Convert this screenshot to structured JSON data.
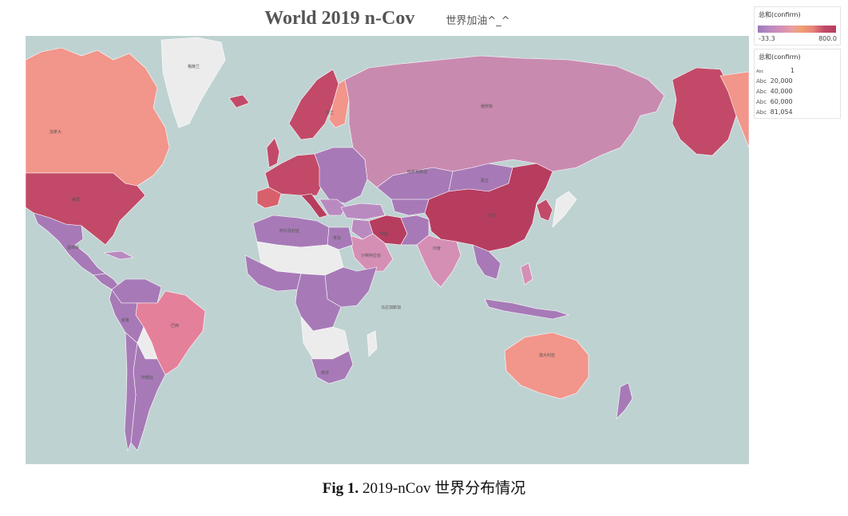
{
  "title": {
    "main": "World 2019 n-Cov",
    "sub": "世界加油^_^"
  },
  "legend_color": {
    "title": "总和(confirm)",
    "min": "-33.3",
    "max": "800.0",
    "gradient": [
      "#9b7bb8",
      "#b98ac0",
      "#d58fb5",
      "#e9a0a0",
      "#f0a070",
      "#e8857a",
      "#d8606c",
      "#c24a68",
      "#b73d5f"
    ]
  },
  "legend_size": {
    "title": "总和(confirm)",
    "items": [
      {
        "abc": "Abc",
        "value": "1"
      },
      {
        "abc": "Abc",
        "value": "20,000"
      },
      {
        "abc": "Abc",
        "value": "40,000"
      },
      {
        "abc": "Abc",
        "value": "60,000"
      },
      {
        "abc": "Abc",
        "value": "81,054"
      }
    ]
  },
  "caption": {
    "bold": "Fig 1.",
    "text": " 2019-nCov 世界分布情况"
  },
  "map": {
    "ocean_color": "#bfd2d2",
    "nodata_color": "#ececec",
    "labels": {
      "china": "中国",
      "iran": "伊朗",
      "russia": "俄罗斯",
      "usa": "美国",
      "canada": "加拿大",
      "brazil": "巴西",
      "australia": "澳大利亚",
      "india": "印度",
      "kazakhstan": "哈萨克斯坦",
      "mongolia": "蒙古",
      "greenland": "格陵兰",
      "egypt": "埃及",
      "argentina": "阿根廷",
      "peru": "秘鲁",
      "mexico": "墨西哥",
      "south_africa": "南非",
      "madagascar": "马达加斯加",
      "saudi": "沙特阿拉伯",
      "finland": "芬兰",
      "algeria": "阿尔及利亚"
    }
  }
}
